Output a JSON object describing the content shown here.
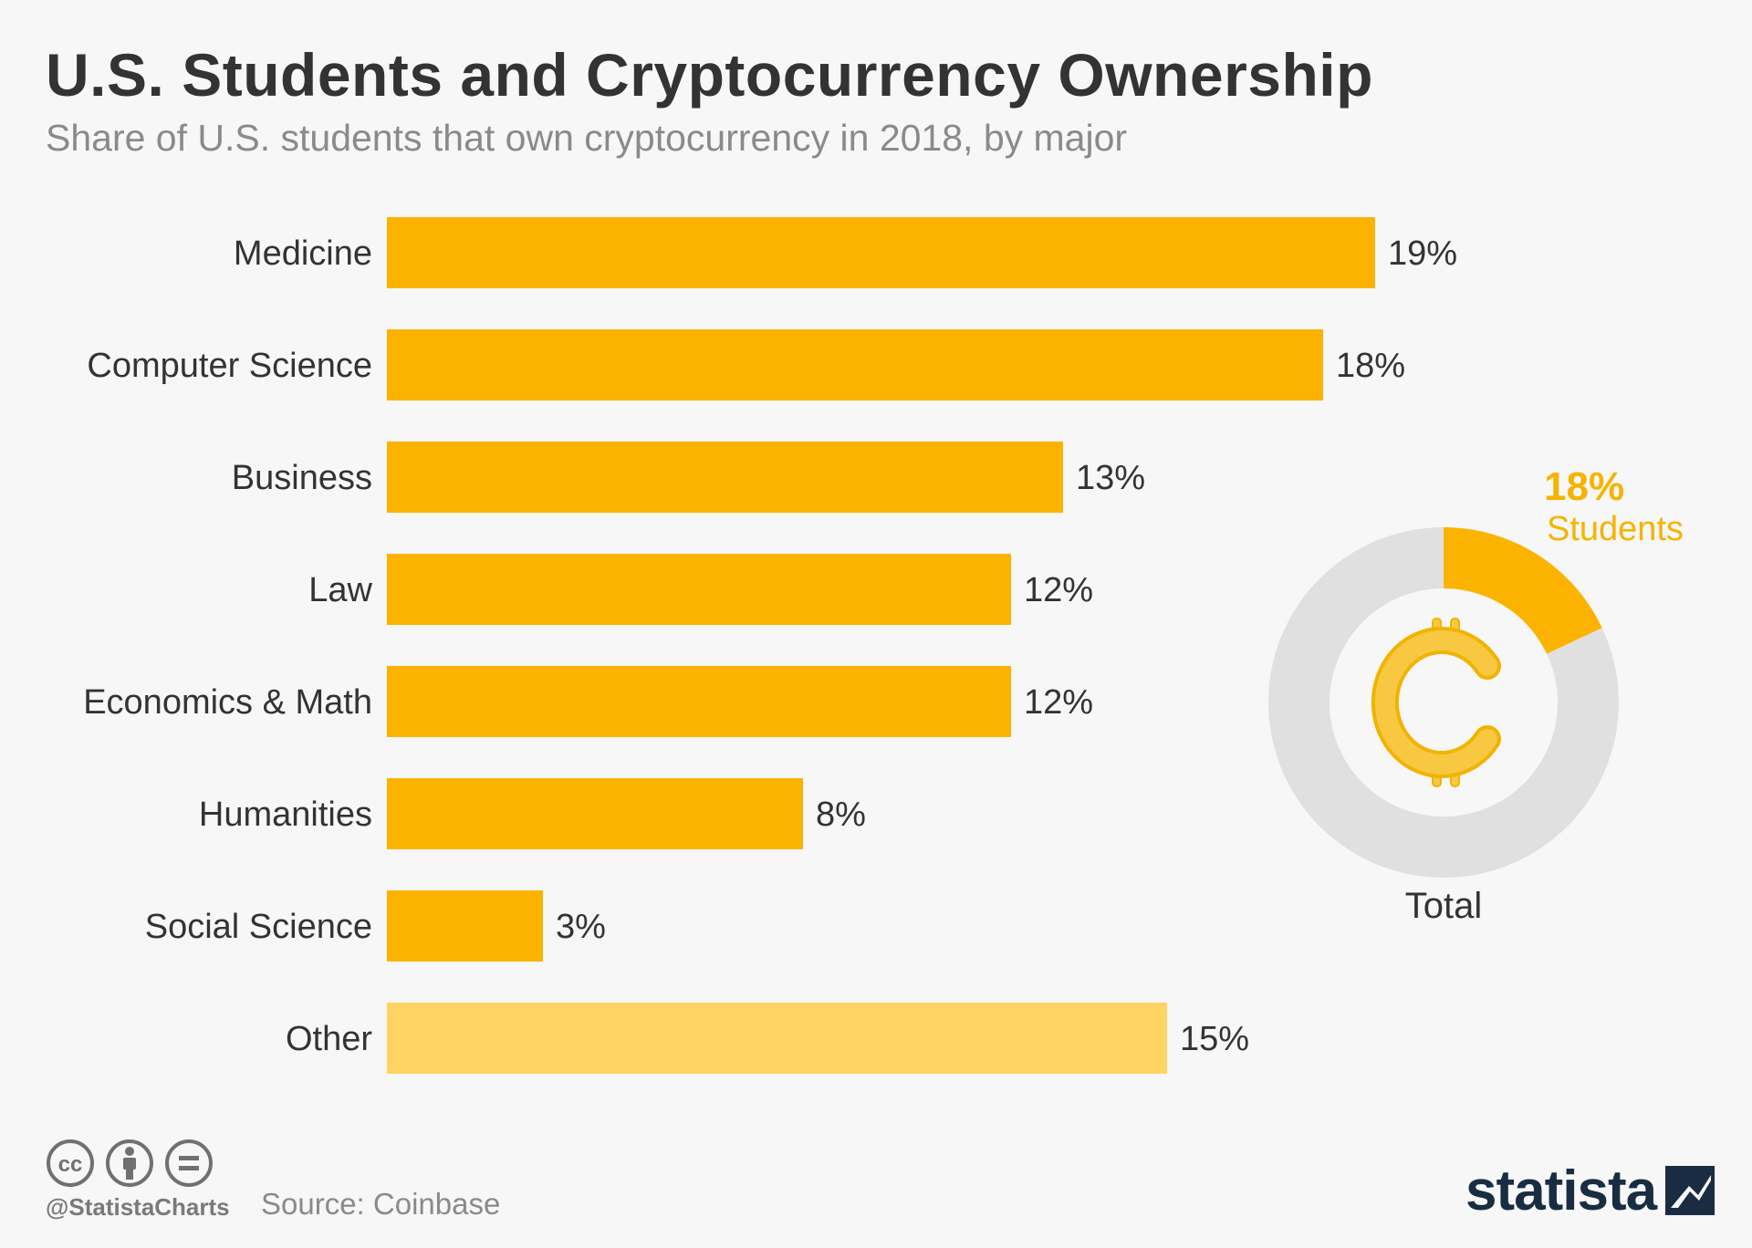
{
  "header": {
    "title": "U.S. Students and Cryptocurrency Ownership",
    "subtitle": "Share of U.S. students that own cryptocurrency in 2018, by major"
  },
  "chart_data": [
    {
      "type": "bar",
      "orientation": "horizontal",
      "categories": [
        "Medicine",
        "Computer Science",
        "Business",
        "Law",
        "Economics & Math",
        "Humanities",
        "Social Science",
        "Other"
      ],
      "values": [
        19,
        18,
        13,
        12,
        12,
        8,
        3,
        15
      ],
      "value_labels": [
        "19%",
        "18%",
        "13%",
        "12%",
        "12%",
        "8%",
        "3%",
        "15%"
      ],
      "unit": "%",
      "colors": {
        "bar": "#fcb300",
        "bar_other": "#ffd364"
      }
    },
    {
      "type": "pie",
      "style": "donut",
      "slices": [
        {
          "label": "Students",
          "value": 18
        },
        {
          "label": "",
          "value": 82
        }
      ],
      "value_label": "18%",
      "slice_label": "Students",
      "caption": "Total",
      "center_icon": "bitcoin-icon",
      "colors": {
        "highlight": "#fcb300",
        "rest": "#e0e0e0",
        "label": "#f5b400"
      }
    }
  ],
  "footer": {
    "license_icons": [
      "cc-icon",
      "attribution-icon",
      "no-derivatives-icon"
    ],
    "handle": "@StatistaCharts",
    "source": "Source: Coinbase",
    "brand": "statista",
    "brand_icon": "statista-logo-icon"
  }
}
